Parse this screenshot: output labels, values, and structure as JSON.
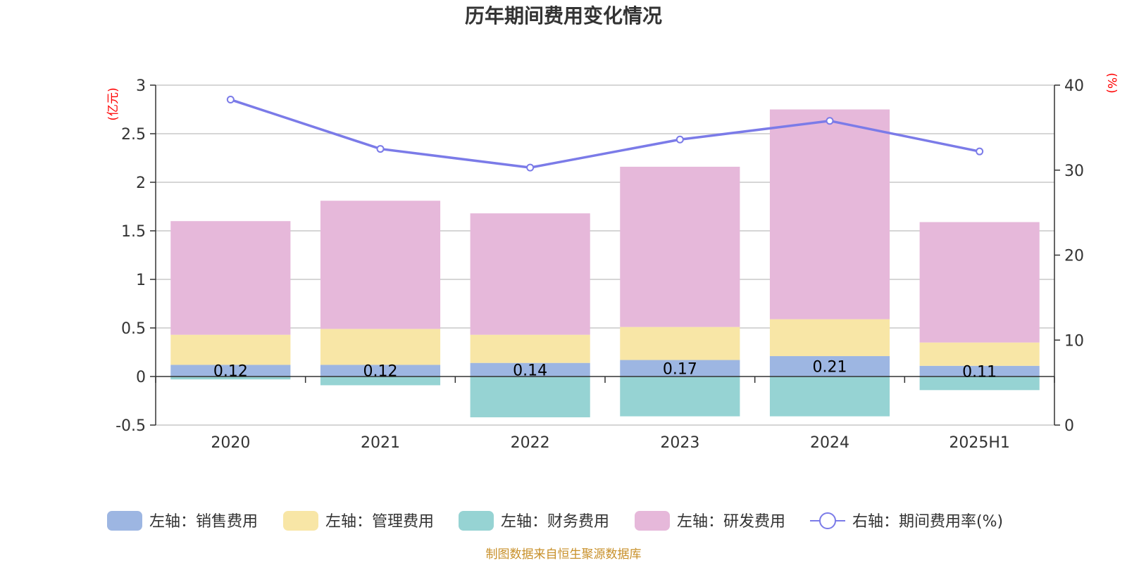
{
  "chart_data": {
    "type": "bar",
    "title": "历年期间费用变化情况",
    "categories": [
      "2020",
      "2021",
      "2022",
      "2023",
      "2024",
      "2025H1"
    ],
    "y_left": {
      "unit": "(亿元)",
      "range": [
        -0.5,
        3
      ],
      "ticks": [
        "3",
        "2.5",
        "2",
        "1.5",
        "1",
        "0.5",
        "0",
        "-0.5"
      ]
    },
    "y_right": {
      "unit": "(%)",
      "range": [
        0,
        40
      ],
      "ticks": [
        "40",
        "30",
        "20",
        "10",
        "0"
      ]
    },
    "grid": true,
    "legend_position": "bottom",
    "series": [
      {
        "name": "左轴：销售费用",
        "axis": "left",
        "color": "#9db6e2",
        "values": [
          0.12,
          0.12,
          0.14,
          0.17,
          0.21,
          0.11
        ],
        "labels": [
          "0.12",
          "0.12",
          "0.14",
          "0.17",
          "0.21",
          "0.11"
        ]
      },
      {
        "name": "左轴：管理费用",
        "axis": "left",
        "color": "#f8e6a6",
        "values": [
          0.31,
          0.37,
          0.29,
          0.34,
          0.38,
          0.24
        ]
      },
      {
        "name": "左轴：财务费用",
        "axis": "left",
        "color": "#96d3d3",
        "values": [
          -0.03,
          -0.09,
          -0.42,
          -0.41,
          -0.41,
          -0.14
        ]
      },
      {
        "name": "左轴：研发费用",
        "axis": "left",
        "color": "#e6b8da",
        "values": [
          1.17,
          1.32,
          1.25,
          1.65,
          2.16,
          1.24
        ]
      },
      {
        "name": "右轴：期间费用率(%)",
        "axis": "right",
        "type": "line",
        "color": "#7b7be8",
        "values": [
          38.3,
          32.5,
          30.3,
          33.6,
          35.8,
          32.2
        ]
      }
    ],
    "source": "制图数据来自恒生聚源数据库"
  }
}
